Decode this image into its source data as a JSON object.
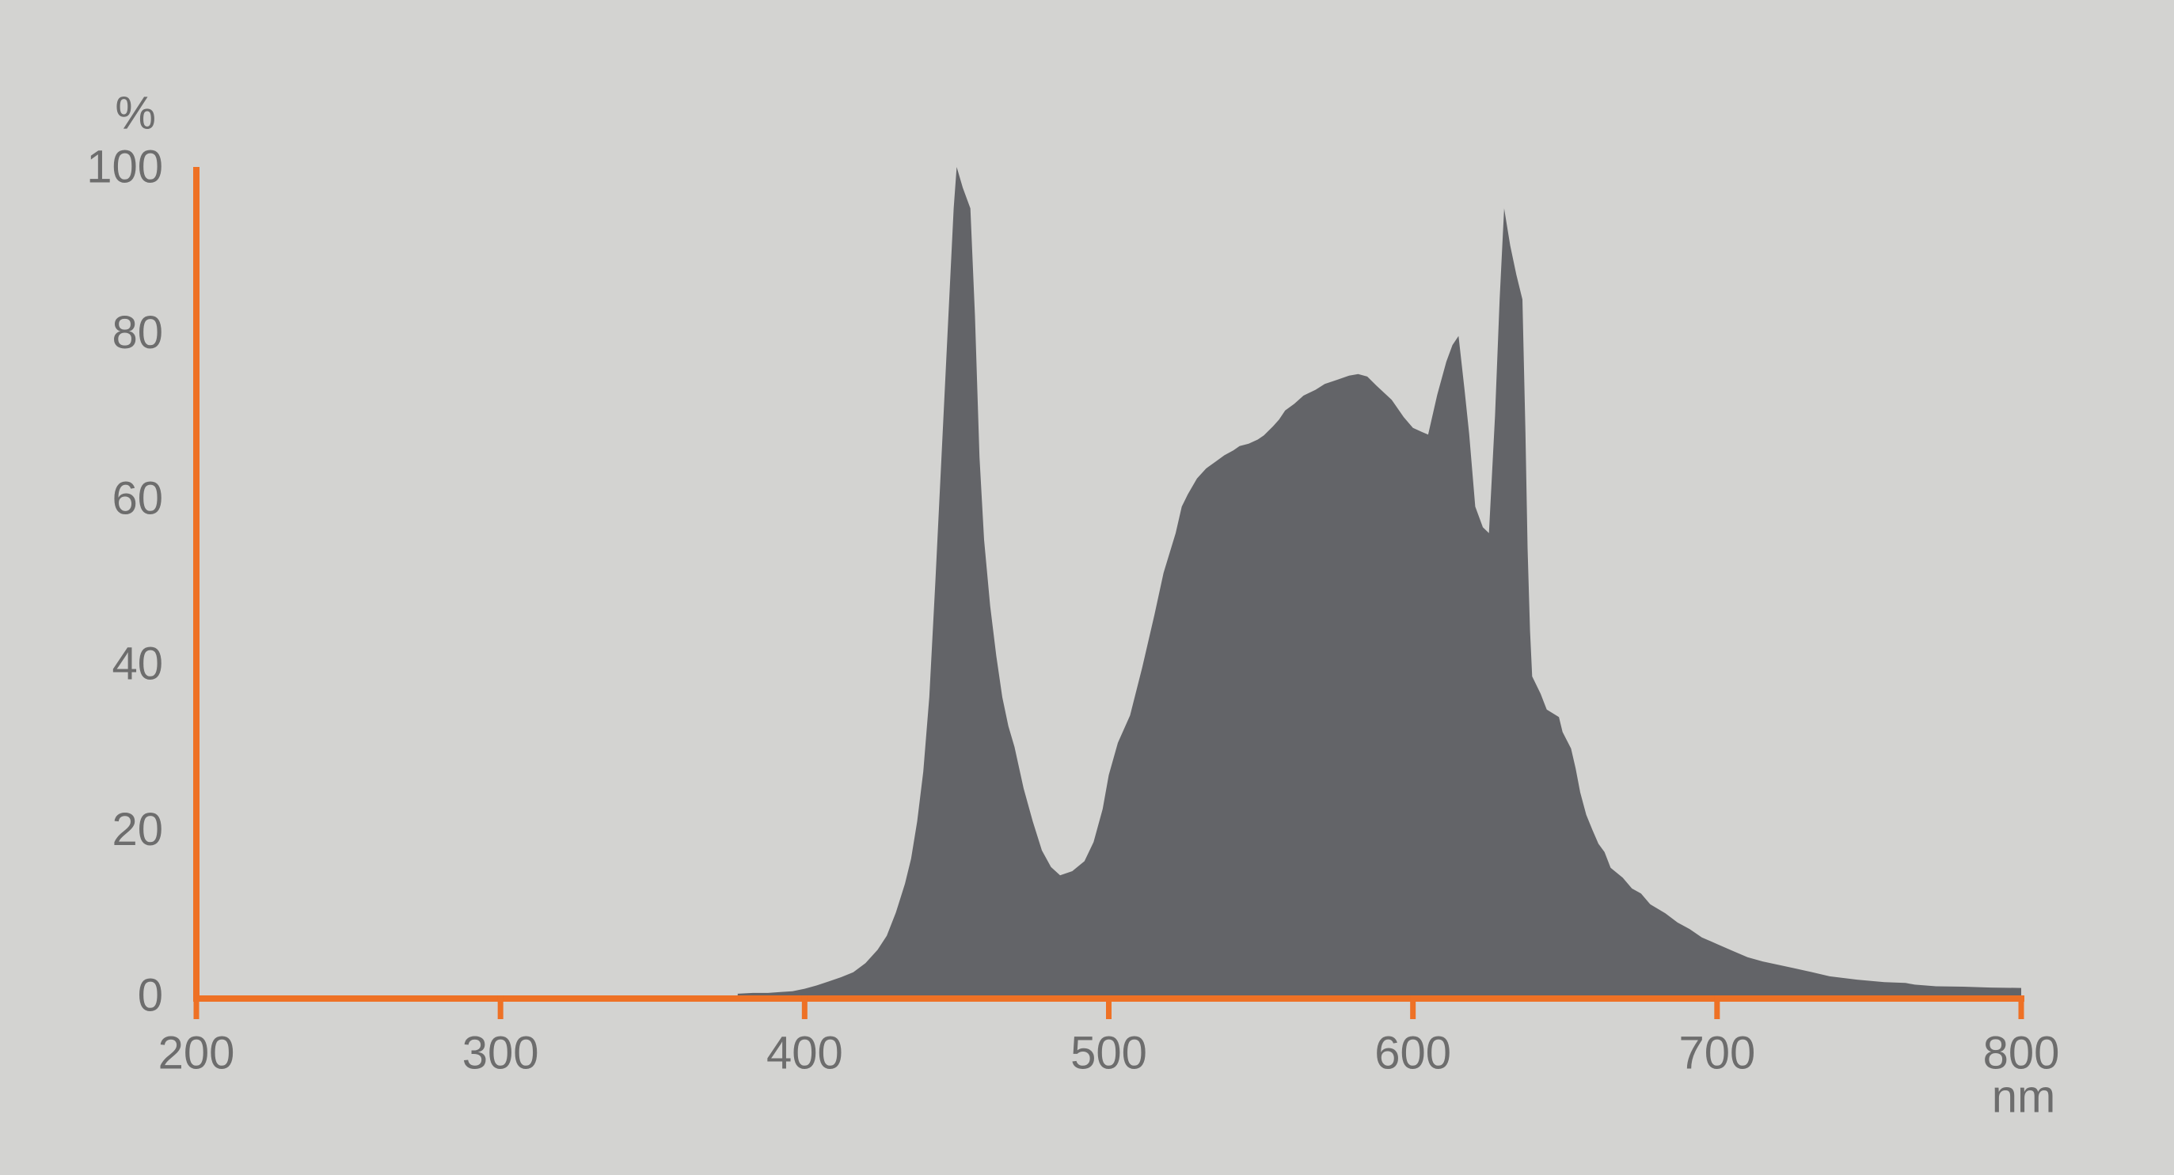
{
  "page": {
    "background": "#d3d3d1"
  },
  "chart_data": {
    "type": "area",
    "title": "",
    "xlabel": "nm",
    "ylabel": "%",
    "xlim": [
      200,
      800
    ],
    "ylim": [
      0,
      100
    ],
    "x_ticks": [
      200,
      300,
      400,
      500,
      600,
      700,
      800
    ],
    "y_ticks": [
      0,
      20,
      40,
      60,
      80,
      100
    ],
    "grid": false,
    "legend": false,
    "axis_color": "#ee7125",
    "area_color": "#636468",
    "label_color": "#6d6d6d",
    "series": [
      {
        "points": [
          [
            378,
            0.2
          ],
          [
            383,
            0.3
          ],
          [
            388,
            0.3
          ],
          [
            392,
            0.4
          ],
          [
            396,
            0.5
          ],
          [
            400,
            0.8
          ],
          [
            404,
            1.2
          ],
          [
            408,
            1.7
          ],
          [
            412,
            2.2
          ],
          [
            416,
            2.8
          ],
          [
            420,
            3.9
          ],
          [
            424,
            5.5
          ],
          [
            427,
            7.2
          ],
          [
            430,
            10
          ],
          [
            433,
            13.5
          ],
          [
            435,
            16.5
          ],
          [
            437,
            21
          ],
          [
            439,
            27
          ],
          [
            441,
            36
          ],
          [
            443,
            50
          ],
          [
            445,
            65
          ],
          [
            447,
            80
          ],
          [
            449,
            95
          ],
          [
            450,
            100
          ],
          [
            452,
            97.5
          ],
          [
            454.5,
            95
          ],
          [
            456,
            82
          ],
          [
            457.5,
            65
          ],
          [
            459,
            55
          ],
          [
            461,
            47
          ],
          [
            463,
            41
          ],
          [
            465,
            36
          ],
          [
            467,
            32.5
          ],
          [
            469,
            30
          ],
          [
            472,
            25
          ],
          [
            475,
            21
          ],
          [
            478,
            17.5
          ],
          [
            481,
            15.5
          ],
          [
            484,
            14.5
          ],
          [
            488,
            15
          ],
          [
            492,
            16.2
          ],
          [
            495,
            18.5
          ],
          [
            498,
            22.5
          ],
          [
            500,
            26.6
          ],
          [
            503,
            30.5
          ],
          [
            507,
            33.8
          ],
          [
            511,
            39.6
          ],
          [
            515,
            45.9
          ],
          [
            518,
            51
          ],
          [
            522,
            55.8
          ],
          [
            524,
            59
          ],
          [
            526,
            60.5
          ],
          [
            529,
            62.4
          ],
          [
            532,
            63.6
          ],
          [
            535,
            64.4
          ],
          [
            538,
            65.2
          ],
          [
            541,
            65.8
          ],
          [
            543,
            66.3
          ],
          [
            546,
            66.6
          ],
          [
            549,
            67.1
          ],
          [
            551,
            67.6
          ],
          [
            554,
            68.7
          ],
          [
            556,
            69.5
          ],
          [
            558,
            70.6
          ],
          [
            561,
            71.4
          ],
          [
            564,
            72.4
          ],
          [
            568,
            73.1
          ],
          [
            571,
            73.8
          ],
          [
            575,
            74.3
          ],
          [
            579,
            74.8
          ],
          [
            582,
            75
          ],
          [
            585,
            74.7
          ],
          [
            588,
            73.6
          ],
          [
            593,
            71.9
          ],
          [
            597,
            69.8
          ],
          [
            600,
            68.5
          ],
          [
            603,
            68
          ],
          [
            605,
            67.7
          ],
          [
            608,
            72.5
          ],
          [
            611,
            76.5
          ],
          [
            613,
            78.5
          ],
          [
            615,
            79.6
          ],
          [
            617,
            73
          ],
          [
            618.5,
            67.8
          ],
          [
            620.5,
            59
          ],
          [
            623,
            56.5
          ],
          [
            625,
            55.8
          ],
          [
            627,
            70
          ],
          [
            628.5,
            84
          ],
          [
            630,
            95
          ],
          [
            632,
            90.5
          ],
          [
            634,
            87
          ],
          [
            636,
            84
          ],
          [
            637,
            68
          ],
          [
            637.7,
            54
          ],
          [
            638.5,
            44
          ],
          [
            639.2,
            38.5
          ],
          [
            642,
            36.4
          ],
          [
            644,
            34.5
          ],
          [
            648,
            33.6
          ],
          [
            649.2,
            31.8
          ],
          [
            652,
            29.8
          ],
          [
            653.5,
            27.4
          ],
          [
            655,
            24.5
          ],
          [
            657,
            21.8
          ],
          [
            659,
            20
          ],
          [
            661,
            18.3
          ],
          [
            663,
            17.3
          ],
          [
            665,
            15.4
          ],
          [
            669,
            14.2
          ],
          [
            672,
            12.9
          ],
          [
            675,
            12.3
          ],
          [
            678,
            11
          ],
          [
            683,
            9.9
          ],
          [
            687,
            8.8
          ],
          [
            691,
            8
          ],
          [
            695,
            7
          ],
          [
            700,
            6.2
          ],
          [
            705,
            5.4
          ],
          [
            710,
            4.6
          ],
          [
            715,
            4.1
          ],
          [
            720,
            3.7
          ],
          [
            725,
            3.3
          ],
          [
            730,
            2.9
          ],
          [
            737,
            2.3
          ],
          [
            746,
            1.9
          ],
          [
            755,
            1.6
          ],
          [
            762,
            1.5
          ],
          [
            765,
            1.3
          ],
          [
            772,
            1.1
          ],
          [
            781,
            1.05
          ],
          [
            790,
            0.95
          ],
          [
            800,
            0.9
          ]
        ]
      }
    ]
  }
}
